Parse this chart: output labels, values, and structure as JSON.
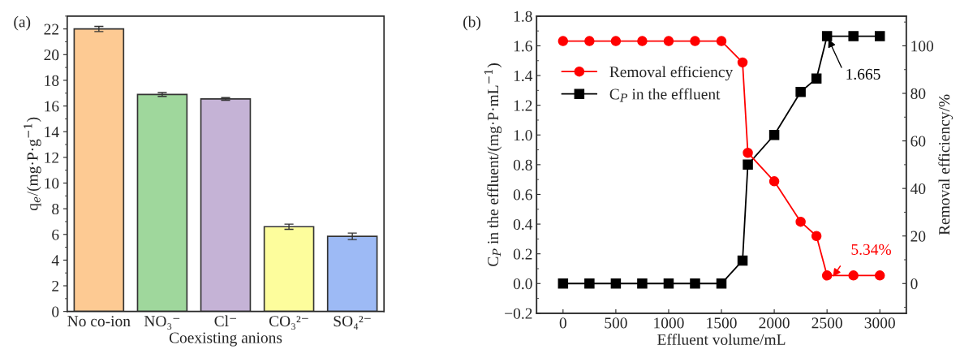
{
  "chart_data": [
    {
      "type": "bar",
      "title": "(a)",
      "xlabel": "Coexisting anions",
      "ylabel": "q$_{e}$/(mg·P·g$^{−1}$)",
      "categories": [
        "No co-ion",
        "NO₃⁻",
        "Cl⁻",
        "CO₃²⁻",
        "SO₄²⁻"
      ],
      "values": [
        22.0,
        16.9,
        16.55,
        6.6,
        5.85
      ],
      "errors": [
        0.2,
        0.15,
        0.1,
        0.2,
        0.25
      ],
      "colors": [
        "#fdca93",
        "#9fd79c",
        "#c5b3d6",
        "#fdfd9c",
        "#9dbaf5"
      ],
      "ylim": [
        0,
        23
      ],
      "yticks": [
        0,
        2,
        4,
        6,
        8,
        10,
        12,
        14,
        16,
        18,
        20,
        22
      ],
      "grid": false
    },
    {
      "type": "line",
      "title": "(b)",
      "xlabel": "Effluent volume/mL",
      "ylabel": "C$_{P}$ in the effluent/(mg·P·mL$^{−1}$)",
      "y2label": "Removal efficiency/%",
      "x": [
        0,
        250,
        500,
        750,
        1000,
        1250,
        1500,
        1700,
        1750,
        2000,
        2250,
        2400,
        2500,
        2750,
        3000
      ],
      "series": [
        {
          "name": "Removal efficiency",
          "color": "#ff0000",
          "axis": "y2",
          "marker": "circle",
          "values": [
            102,
            102,
            102,
            102,
            102,
            102,
            102,
            93,
            55,
            43,
            26,
            20,
            3.4,
            3.4,
            3.4
          ]
        },
        {
          "name": "C$_{P}$ in the effluent",
          "color": "#000000",
          "axis": "y",
          "marker": "square",
          "values": [
            0,
            0,
            0,
            0,
            0,
            0,
            0,
            0.155,
            0.8,
            1.0,
            1.29,
            1.38,
            1.665,
            1.665,
            1.665
          ]
        }
      ],
      "xlim": [
        -250,
        3250
      ],
      "xticks": [
        0,
        500,
        1000,
        1500,
        2000,
        2500,
        3000
      ],
      "ylim": [
        -0.2,
        1.8
      ],
      "yticks": [
        {
          "value": -0.2,
          "label": "−0.2"
        },
        {
          "value": 0,
          "label": "0.0"
        },
        0.2,
        0.4,
        0.6,
        0.8,
        {
          "value": 1,
          "label": "1.0"
        },
        1.2,
        1.4,
        1.6,
        1.8
      ],
      "y2lim": [
        -12.5,
        112.5
      ],
      "y2ticks": [
        0,
        20,
        40,
        60,
        80,
        100
      ],
      "annotations": [
        {
          "text": "1.665",
          "x": 2500,
          "y": 1.665
        },
        "5.34%"
      ],
      "grid": false,
      "legend": "top left",
      "line_style": "solid"
    }
  ]
}
